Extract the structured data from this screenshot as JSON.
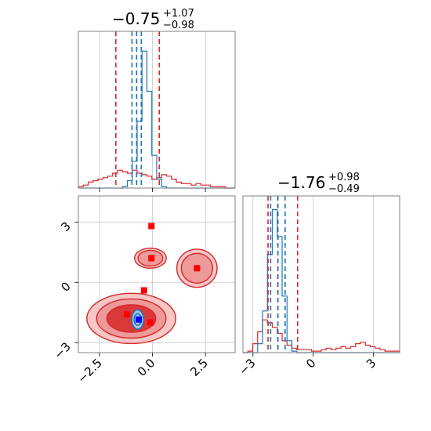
{
  "chart_data": {
    "type": "corner",
    "params": [
      {
        "title": {
          "value": "−0.75",
          "plus": "+1.07",
          "minus": "−0.98"
        },
        "range": [
          -3.5,
          3.9
        ],
        "ticks": [
          {
            "v": -2.5,
            "label": "−2.5"
          },
          {
            "v": 0.0,
            "label": "0.0"
          },
          {
            "v": 2.5,
            "label": "2.5"
          }
        ],
        "red_quantiles": [
          -1.73,
          -0.75,
          0.32
        ],
        "blue_quantiles": [
          -0.97,
          -0.75,
          -0.53
        ]
      },
      {
        "title": {
          "value": "−1.76",
          "plus": "+0.98",
          "minus": "−0.49"
        },
        "range": [
          -3.5,
          4.3
        ],
        "ticks": [
          {
            "v": -3,
            "label": "−3"
          },
          {
            "v": 0,
            "label": "0"
          },
          {
            "v": 3,
            "label": "3"
          }
        ],
        "red_quantiles": [
          -2.25,
          -1.76,
          -0.78
        ],
        "blue_quantiles": [
          -2.12,
          -1.76,
          -1.4
        ]
      }
    ],
    "hist1_red": [
      0.01,
      0.02,
      0.04,
      0.05,
      0.06,
      0.07,
      0.08,
      0.1,
      0.12,
      0.11,
      0.1,
      0.12,
      0.1,
      0.09,
      0.08,
      0.06,
      0.07,
      0.09,
      0.08,
      0.06,
      0.04,
      0.03,
      0.03,
      0.02,
      0.03,
      0.02,
      0.02,
      0.01,
      0.01,
      0.01,
      0.0,
      0.0
    ],
    "hist1_blue": [
      0,
      0,
      0,
      0,
      0,
      0,
      0,
      0,
      0,
      0.01,
      0.05,
      0.18,
      0.45,
      0.92,
      0.65,
      0.22,
      0.06,
      0.01,
      0,
      0,
      0,
      0,
      0,
      0,
      0,
      0,
      0,
      0,
      0,
      0,
      0,
      0
    ],
    "hist2_red": [
      0,
      0.01,
      0.06,
      0.14,
      0.22,
      0.2,
      0.17,
      0.13,
      0.08,
      0.05,
      0.03,
      0.02,
      0.02,
      0.02,
      0.01,
      0.01,
      0.02,
      0.03,
      0.02,
      0.03,
      0.04,
      0.03,
      0.04,
      0.06,
      0.07,
      0.05,
      0.04,
      0.03,
      0.02,
      0.01,
      0.01,
      0.01
    ],
    "hist2_blue": [
      0,
      0,
      0,
      0.06,
      0.28,
      0.66,
      0.96,
      0.78,
      0.38,
      0.08,
      0.01,
      0,
      0,
      0,
      0,
      0,
      0,
      0,
      0,
      0,
      0,
      0,
      0,
      0,
      0,
      0,
      0,
      0,
      0,
      0,
      0,
      0
    ],
    "red_blobs": [
      {
        "cx": -1.0,
        "cy": -1.8,
        "rx": 2.1,
        "ry": 1.25
      },
      {
        "cx": 2.1,
        "cy": 0.7,
        "rx": 0.95,
        "ry": 0.95
      },
      {
        "cx": -0.1,
        "cy": 1.2,
        "rx": 0.75,
        "ry": 0.5
      }
    ],
    "blue_blob": {
      "cx": -0.7,
      "cy": -1.85,
      "rx": 0.28,
      "ry": 0.48
    },
    "red_points": [
      [
        -0.05,
        2.8
      ],
      [
        -0.05,
        1.2
      ],
      [
        2.1,
        0.7
      ],
      [
        -0.4,
        -0.4
      ],
      [
        -1.2,
        -1.6
      ],
      [
        -0.1,
        -2.0
      ]
    ],
    "blue_point": [
      -0.65,
      -1.85
    ],
    "colors": {
      "red": "#d62728",
      "blue": "#1f77b4",
      "point_red": "#ff0000",
      "point_blue": "#0000ff",
      "grid": "#c8c8c8",
      "frame": "#808080"
    }
  }
}
